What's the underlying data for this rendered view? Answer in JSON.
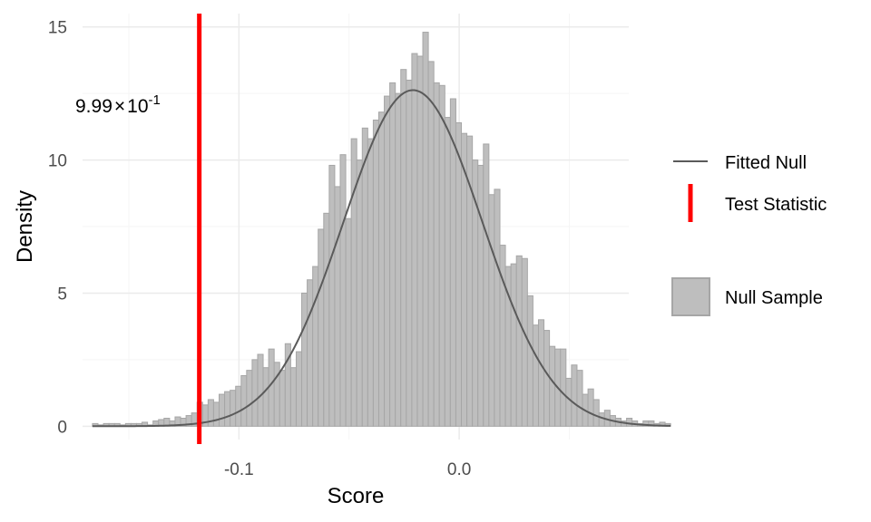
{
  "chart_data": {
    "type": "histogram",
    "xlabel": "Score",
    "ylabel": "Density",
    "xlim": [
      -0.171,
      0.077
    ],
    "ylim": [
      -0.5,
      15.5
    ],
    "x_ticks": [
      {
        "value": -0.1,
        "label": "-0.1"
      },
      {
        "value": 0.0,
        "label": "0.0"
      }
    ],
    "y_ticks": [
      {
        "value": 0,
        "label": "0"
      },
      {
        "value": 5,
        "label": "5"
      },
      {
        "value": 10,
        "label": "10"
      },
      {
        "value": 15,
        "label": "15"
      }
    ],
    "x_minor_ticks": [
      -0.15,
      -0.05,
      0.05
    ],
    "y_minor_ticks": [
      2.5,
      7.5,
      12.5
    ],
    "grid": true,
    "bin_start": -0.1665,
    "bin_width": 0.0025,
    "density_values": [
      0.1,
      0.05,
      0.1,
      0.1,
      0.1,
      0.05,
      0.1,
      0.1,
      0.1,
      0.15,
      0.05,
      0.2,
      0.25,
      0.3,
      0.2,
      0.35,
      0.3,
      0.4,
      0.5,
      0.9,
      0.8,
      1.0,
      0.9,
      1.2,
      1.3,
      1.35,
      1.5,
      1.9,
      2.1,
      2.5,
      2.7,
      2.2,
      2.9,
      2.4,
      2.1,
      3.1,
      2.2,
      2.8,
      5.0,
      5.5,
      6.0,
      7.4,
      8.0,
      9.8,
      9.0,
      10.2,
      7.8,
      10.8,
      10.0,
      11.2,
      10.8,
      11.5,
      11.8,
      12.4,
      12.9,
      12.5,
      13.4,
      13.0,
      14.0,
      13.9,
      14.8,
      13.7,
      12.9,
      12.8,
      11.6,
      12.3,
      11.4,
      11.0,
      10.9,
      10.0,
      9.8,
      10.6,
      8.7,
      8.9,
      6.8,
      6.0,
      6.1,
      6.4,
      6.3,
      4.9,
      3.8,
      4.0,
      3.6,
      3.0,
      2.9,
      2.9,
      1.8,
      2.3,
      2.1,
      1.2,
      1.4,
      1.0,
      0.5,
      0.6,
      0.4,
      0.3,
      0.2,
      0.3,
      0.2,
      0.1,
      0.2,
      0.2,
      0.1,
      0.15,
      0.1
    ],
    "fitted_null": {
      "distribution": "normal",
      "mean": -0.021,
      "sd": 0.0316
    },
    "test_statistic": -0.118,
    "annotation": {
      "mantissa": "9.99",
      "exponent": "-1"
    },
    "legend": [
      {
        "label": "Fitted Null",
        "kind": "line",
        "color": "#5a5a5a"
      },
      {
        "label": "Test Statistic",
        "kind": "vline",
        "color": "#ff0000"
      },
      {
        "label": "Null Sample",
        "kind": "fill",
        "color": "#bebebe"
      }
    ],
    "legend_position": "right",
    "colors": {
      "bar_fill": "#bebebe",
      "bar_stroke": "#a6a6a6",
      "curve": "#5a5a5a",
      "test_line": "#ff0000",
      "grid_major": "#ebebeb",
      "grid_minor": "#f5f5f5"
    }
  }
}
